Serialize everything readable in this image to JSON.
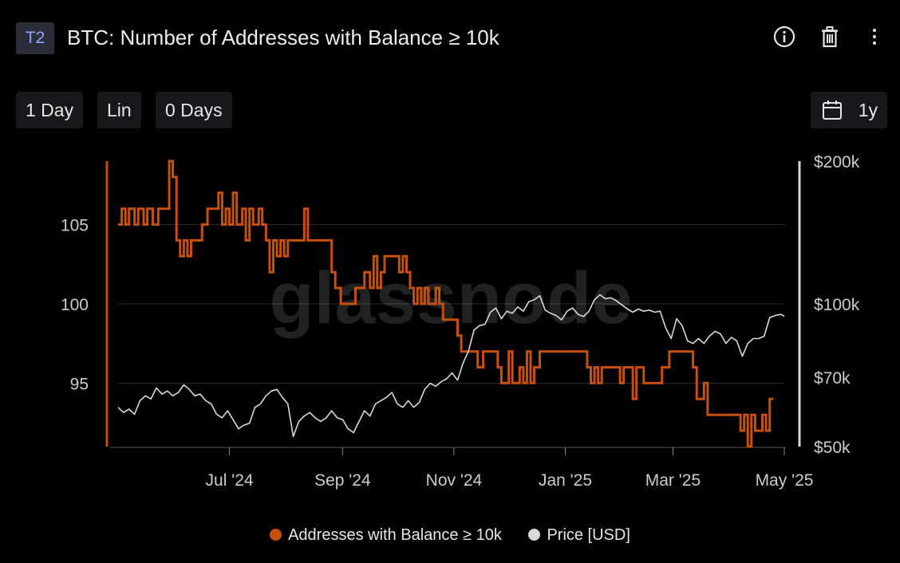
{
  "header": {
    "badge": "T2",
    "title": "BTC: Number of Addresses with Balance ≥ 10k",
    "icons": [
      "info-icon",
      "trash-icon",
      "more-vertical-icon"
    ]
  },
  "controls": {
    "resolution": "1 Day",
    "scale": "Lin",
    "smoothing": "0 Days",
    "range": "1y",
    "range_icon": "calendar-icon"
  },
  "watermark": "glassnode",
  "colors": {
    "background": "#000000",
    "addresses": "#c8500f",
    "price": "#d9d9d9",
    "grid": "#2a2a2a",
    "axis_text": "#cccccc"
  },
  "chart_data": {
    "type": "line",
    "title": "BTC: Number of Addresses with Balance ≥ 10k",
    "x_ticks": [
      "Jul '24",
      "Sep '24",
      "Nov '24",
      "Jan '25",
      "Mar '25",
      "May '25"
    ],
    "y_left": {
      "ticks": [
        "95",
        "100",
        "105"
      ],
      "range": [
        91,
        109
      ]
    },
    "y_right": {
      "ticks": [
        "$50k",
        "$70k",
        "$100k",
        "$200k"
      ],
      "scale": "log",
      "range": [
        50000,
        200000
      ]
    },
    "grid": true,
    "legend_position": "bottom-center",
    "series": [
      {
        "name": "Addresses with Balance ≥ 10k",
        "axis": "left",
        "color": "#c8500f",
        "points": [
          [
            "2024-05-01",
            105
          ],
          [
            "2024-05-03",
            106
          ],
          [
            "2024-05-05",
            105
          ],
          [
            "2024-05-07",
            106
          ],
          [
            "2024-05-10",
            105
          ],
          [
            "2024-05-12",
            106
          ],
          [
            "2024-05-15",
            105
          ],
          [
            "2024-05-17",
            106
          ],
          [
            "2024-05-20",
            105
          ],
          [
            "2024-05-23",
            106
          ],
          [
            "2024-05-27",
            106
          ],
          [
            "2024-05-29",
            109
          ],
          [
            "2024-05-31",
            108
          ],
          [
            "2024-06-02",
            104
          ],
          [
            "2024-06-04",
            103
          ],
          [
            "2024-06-06",
            104
          ],
          [
            "2024-06-08",
            103
          ],
          [
            "2024-06-10",
            104
          ],
          [
            "2024-06-14",
            104
          ],
          [
            "2024-06-16",
            105
          ],
          [
            "2024-06-19",
            106
          ],
          [
            "2024-06-23",
            106
          ],
          [
            "2024-06-25",
            107
          ],
          [
            "2024-06-27",
            105
          ],
          [
            "2024-06-29",
            106
          ],
          [
            "2024-07-01",
            105
          ],
          [
            "2024-07-03",
            107
          ],
          [
            "2024-07-05",
            105
          ],
          [
            "2024-07-08",
            106
          ],
          [
            "2024-07-10",
            104
          ],
          [
            "2024-07-12",
            106
          ],
          [
            "2024-07-14",
            105
          ],
          [
            "2024-07-17",
            106
          ],
          [
            "2024-07-19",
            105
          ],
          [
            "2024-07-21",
            104
          ],
          [
            "2024-07-23",
            102
          ],
          [
            "2024-07-25",
            104
          ],
          [
            "2024-07-27",
            103
          ],
          [
            "2024-07-29",
            104
          ],
          [
            "2024-07-31",
            103
          ],
          [
            "2024-08-02",
            104
          ],
          [
            "2024-08-05",
            104
          ],
          [
            "2024-08-08",
            104
          ],
          [
            "2024-08-11",
            106
          ],
          [
            "2024-08-13",
            104
          ],
          [
            "2024-08-16",
            104
          ],
          [
            "2024-08-20",
            104
          ],
          [
            "2024-08-24",
            104
          ],
          [
            "2024-08-26",
            102
          ],
          [
            "2024-08-28",
            101
          ],
          [
            "2024-08-31",
            100
          ],
          [
            "2024-09-03",
            100
          ],
          [
            "2024-09-06",
            100
          ],
          [
            "2024-09-08",
            101
          ],
          [
            "2024-09-11",
            101
          ],
          [
            "2024-09-13",
            102
          ],
          [
            "2024-09-16",
            101
          ],
          [
            "2024-09-18",
            103
          ],
          [
            "2024-09-20",
            101
          ],
          [
            "2024-09-22",
            102
          ],
          [
            "2024-09-24",
            103
          ],
          [
            "2024-09-27",
            103
          ],
          [
            "2024-09-30",
            103
          ],
          [
            "2024-10-02",
            102
          ],
          [
            "2024-10-04",
            103
          ],
          [
            "2024-10-06",
            102
          ],
          [
            "2024-10-08",
            101
          ],
          [
            "2024-10-10",
            100
          ],
          [
            "2024-10-12",
            101
          ],
          [
            "2024-10-14",
            100
          ],
          [
            "2024-10-16",
            101
          ],
          [
            "2024-10-18",
            100
          ],
          [
            "2024-10-20",
            100
          ],
          [
            "2024-10-22",
            101
          ],
          [
            "2024-10-24",
            100
          ],
          [
            "2024-10-26",
            99
          ],
          [
            "2024-10-29",
            99
          ],
          [
            "2024-11-01",
            99
          ],
          [
            "2024-11-03",
            98
          ],
          [
            "2024-11-05",
            97
          ],
          [
            "2024-11-08",
            97
          ],
          [
            "2024-11-12",
            97
          ],
          [
            "2024-11-14",
            96
          ],
          [
            "2024-11-17",
            97
          ],
          [
            "2024-11-20",
            97
          ],
          [
            "2024-11-23",
            97
          ],
          [
            "2024-11-25",
            96
          ],
          [
            "2024-11-27",
            95
          ],
          [
            "2024-11-29",
            95
          ],
          [
            "2024-12-01",
            97
          ],
          [
            "2024-12-03",
            95
          ],
          [
            "2024-12-05",
            95
          ],
          [
            "2024-12-07",
            96
          ],
          [
            "2024-12-09",
            95
          ],
          [
            "2024-12-11",
            97
          ],
          [
            "2024-12-13",
            95
          ],
          [
            "2024-12-15",
            96
          ],
          [
            "2024-12-18",
            97
          ],
          [
            "2024-12-22",
            97
          ],
          [
            "2024-12-26",
            97
          ],
          [
            "2024-12-30",
            97
          ],
          [
            "2025-01-03",
            97
          ],
          [
            "2025-01-07",
            97
          ],
          [
            "2025-01-11",
            97
          ],
          [
            "2025-01-13",
            96
          ],
          [
            "2025-01-15",
            95
          ],
          [
            "2025-01-17",
            96
          ],
          [
            "2025-01-19",
            95
          ],
          [
            "2025-01-21",
            96
          ],
          [
            "2025-01-25",
            96
          ],
          [
            "2025-01-29",
            96
          ],
          [
            "2025-01-31",
            95
          ],
          [
            "2025-02-02",
            96
          ],
          [
            "2025-02-05",
            96
          ],
          [
            "2025-02-07",
            94
          ],
          [
            "2025-02-09",
            96
          ],
          [
            "2025-02-11",
            96
          ],
          [
            "2025-02-13",
            95
          ],
          [
            "2025-02-17",
            95
          ],
          [
            "2025-02-21",
            95
          ],
          [
            "2025-02-23",
            96
          ],
          [
            "2025-02-25",
            96
          ],
          [
            "2025-02-27",
            97
          ],
          [
            "2025-03-02",
            97
          ],
          [
            "2025-03-06",
            97
          ],
          [
            "2025-03-10",
            97
          ],
          [
            "2025-03-12",
            96
          ],
          [
            "2025-03-14",
            94
          ],
          [
            "2025-03-16",
            94
          ],
          [
            "2025-03-18",
            95
          ],
          [
            "2025-03-20",
            93
          ],
          [
            "2025-03-24",
            93
          ],
          [
            "2025-03-28",
            93
          ],
          [
            "2025-04-01",
            93
          ],
          [
            "2025-04-05",
            93
          ],
          [
            "2025-04-07",
            92
          ],
          [
            "2025-04-09",
            93
          ],
          [
            "2025-04-11",
            91
          ],
          [
            "2025-04-13",
            93
          ],
          [
            "2025-04-15",
            92
          ],
          [
            "2025-04-17",
            92
          ],
          [
            "2025-04-19",
            93
          ],
          [
            "2025-04-21",
            92
          ],
          [
            "2025-04-23",
            94
          ],
          [
            "2025-04-25",
            94
          ]
        ]
      },
      {
        "name": "Price [USD]",
        "axis": "right",
        "color": "#d9d9d9",
        "points": [
          [
            "2024-05-01",
            60500
          ],
          [
            "2024-05-04",
            59000
          ],
          [
            "2024-05-07",
            60000
          ],
          [
            "2024-05-10",
            58500
          ],
          [
            "2024-05-13",
            62500
          ],
          [
            "2024-05-16",
            64000
          ],
          [
            "2024-05-19",
            63000
          ],
          [
            "2024-05-22",
            66500
          ],
          [
            "2024-05-25",
            64500
          ],
          [
            "2024-05-28",
            65500
          ],
          [
            "2024-05-31",
            64000
          ],
          [
            "2024-06-03",
            65000
          ],
          [
            "2024-06-06",
            67500
          ],
          [
            "2024-06-09",
            66000
          ],
          [
            "2024-06-12",
            64000
          ],
          [
            "2024-06-15",
            64500
          ],
          [
            "2024-06-18",
            62500
          ],
          [
            "2024-06-21",
            61500
          ],
          [
            "2024-06-24",
            58500
          ],
          [
            "2024-06-27",
            57500
          ],
          [
            "2024-06-30",
            59500
          ],
          [
            "2024-07-03",
            57000
          ],
          [
            "2024-07-06",
            54500
          ],
          [
            "2024-07-09",
            55500
          ],
          [
            "2024-07-12",
            56000
          ],
          [
            "2024-07-15",
            60500
          ],
          [
            "2024-07-18",
            61500
          ],
          [
            "2024-07-21",
            64000
          ],
          [
            "2024-07-24",
            65500
          ],
          [
            "2024-07-27",
            66000
          ],
          [
            "2024-07-30",
            63500
          ],
          [
            "2024-08-02",
            61500
          ],
          [
            "2024-08-05",
            52500
          ],
          [
            "2024-08-08",
            56500
          ],
          [
            "2024-08-11",
            58000
          ],
          [
            "2024-08-14",
            59000
          ],
          [
            "2024-08-17",
            57500
          ],
          [
            "2024-08-20",
            56500
          ],
          [
            "2024-08-23",
            57500
          ],
          [
            "2024-08-26",
            59500
          ],
          [
            "2024-08-29",
            57500
          ],
          [
            "2024-09-01",
            57000
          ],
          [
            "2024-09-04",
            54500
          ],
          [
            "2024-09-07",
            53500
          ],
          [
            "2024-09-10",
            56500
          ],
          [
            "2024-09-13",
            59500
          ],
          [
            "2024-09-16",
            58000
          ],
          [
            "2024-09-19",
            61500
          ],
          [
            "2024-09-22",
            62500
          ],
          [
            "2024-09-25",
            63500
          ],
          [
            "2024-09-28",
            65000
          ],
          [
            "2024-10-01",
            61500
          ],
          [
            "2024-10-04",
            60500
          ],
          [
            "2024-10-07",
            62500
          ],
          [
            "2024-10-10",
            60500
          ],
          [
            "2024-10-13",
            62000
          ],
          [
            "2024-10-16",
            66000
          ],
          [
            "2024-10-19",
            68000
          ],
          [
            "2024-10-22",
            67000
          ],
          [
            "2024-10-25",
            68500
          ],
          [
            "2024-10-28",
            69500
          ],
          [
            "2024-10-31",
            71500
          ],
          [
            "2024-11-03",
            69000
          ],
          [
            "2024-11-06",
            75000
          ],
          [
            "2024-11-09",
            79500
          ],
          [
            "2024-11-12",
            88000
          ],
          [
            "2024-11-15",
            90000
          ],
          [
            "2024-11-18",
            90500
          ],
          [
            "2024-11-21",
            96000
          ],
          [
            "2024-11-24",
            98000
          ],
          [
            "2024-11-27",
            93000
          ],
          [
            "2024-11-30",
            96500
          ],
          [
            "2024-12-03",
            95500
          ],
          [
            "2024-12-06",
            98500
          ],
          [
            "2024-12-09",
            96500
          ],
          [
            "2024-12-12",
            101000
          ],
          [
            "2024-12-15",
            102000
          ],
          [
            "2024-12-18",
            104000
          ],
          [
            "2024-12-21",
            97000
          ],
          [
            "2024-12-24",
            95500
          ],
          [
            "2024-12-27",
            94500
          ],
          [
            "2024-12-30",
            92500
          ],
          [
            "2025-01-02",
            96500
          ],
          [
            "2025-01-05",
            98000
          ],
          [
            "2025-01-08",
            95000
          ],
          [
            "2025-01-11",
            94000
          ],
          [
            "2025-01-14",
            96500
          ],
          [
            "2025-01-17",
            102000
          ],
          [
            "2025-01-20",
            104500
          ],
          [
            "2025-01-23",
            102500
          ],
          [
            "2025-01-26",
            103000
          ],
          [
            "2025-01-29",
            101500
          ],
          [
            "2025-02-01",
            99500
          ],
          [
            "2025-02-04",
            97500
          ],
          [
            "2025-02-07",
            96000
          ],
          [
            "2025-02-10",
            97500
          ],
          [
            "2025-02-13",
            96500
          ],
          [
            "2025-02-16",
            97000
          ],
          [
            "2025-02-19",
            96000
          ],
          [
            "2025-02-22",
            96500
          ],
          [
            "2025-02-25",
            89000
          ],
          [
            "2025-02-28",
            84500
          ],
          [
            "2025-03-03",
            93000
          ],
          [
            "2025-03-06",
            90000
          ],
          [
            "2025-03-09",
            83500
          ],
          [
            "2025-03-12",
            82500
          ],
          [
            "2025-03-15",
            84500
          ],
          [
            "2025-03-18",
            82500
          ],
          [
            "2025-03-21",
            85500
          ],
          [
            "2025-03-24",
            87500
          ],
          [
            "2025-03-27",
            86500
          ],
          [
            "2025-03-30",
            82500
          ],
          [
            "2025-04-02",
            85000
          ],
          [
            "2025-04-05",
            83500
          ],
          [
            "2025-04-08",
            77500
          ],
          [
            "2025-04-11",
            82500
          ],
          [
            "2025-04-14",
            84500
          ],
          [
            "2025-04-17",
            84500
          ],
          [
            "2025-04-20",
            85500
          ],
          [
            "2025-04-23",
            93500
          ],
          [
            "2025-04-26",
            94500
          ],
          [
            "2025-04-29",
            95000
          ],
          [
            "2025-05-01",
            94200
          ]
        ]
      }
    ]
  },
  "legend": [
    {
      "label": "Addresses with Balance ≥ 10k",
      "color": "#c8500f"
    },
    {
      "label": "Price [USD]",
      "color": "#d9d9d9"
    }
  ]
}
